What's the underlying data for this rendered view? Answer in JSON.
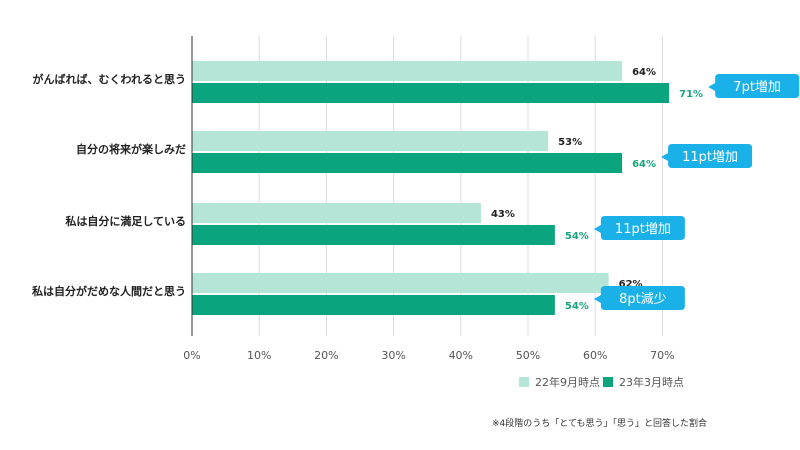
{
  "chart_data": {
    "type": "bar",
    "orientation": "horizontal",
    "categories": [
      "がんばれば、むくわれると思う",
      "自分の将来が楽しみだ",
      "私は自分に満足している",
      "私は自分がだめな人間だと思う"
    ],
    "series": [
      {
        "name": "22年9月時点",
        "values": [
          64,
          53,
          43,
          62
        ],
        "labels": [
          "64%",
          "53%",
          "43%",
          "62%"
        ],
        "color": "#b4e5d7",
        "label_color": "#222222"
      },
      {
        "name": "23年3月時点",
        "values": [
          71,
          64,
          54,
          54
        ],
        "labels": [
          "71%",
          "64%",
          "54%",
          "54%"
        ],
        "color": "#0aa57e",
        "label_color": "#1aa37f"
      }
    ],
    "annotations": [
      "7pt増加",
      "11pt増加",
      "11pt増加",
      "8pt減少"
    ],
    "annotation_color": "#1ab0e8",
    "xlim": [
      0,
      70
    ],
    "xticks": [
      "0%",
      "10%",
      "20%",
      "30%",
      "40%",
      "50%",
      "60%",
      "70%"
    ],
    "xlabel": "",
    "ylabel": "",
    "grid": true,
    "legend_position": "bottom-right"
  },
  "footnote": "※4段階のうち「とても思う」「思う」と回答した割合"
}
